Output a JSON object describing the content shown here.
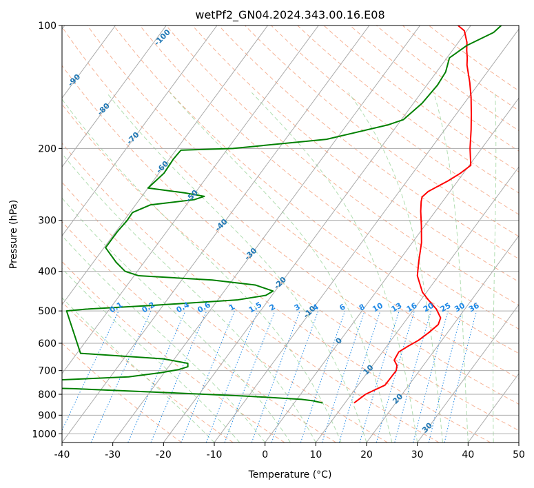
{
  "chart_data": {
    "type": "line",
    "title": "wetPf2_GN04.2024.343.00.16.E08",
    "xlabel": "Temperature (°C)",
    "ylabel": "Pressure (hPa)",
    "xlim": [
      -40,
      50
    ],
    "ylim": [
      1050,
      100
    ],
    "y_scale": "log",
    "skew": "skew-T",
    "grid": true,
    "x_ticks": [
      -40,
      -30,
      -20,
      -10,
      0,
      10,
      20,
      30,
      40,
      50
    ],
    "y_ticks": [
      100,
      200,
      300,
      400,
      500,
      600,
      700,
      800,
      900,
      1000
    ],
    "isotherm_labels": [
      "-100",
      "-90",
      "-80",
      "-70",
      "-60",
      "-50",
      "-40",
      "-30",
      "-20",
      "-10",
      "0",
      "10",
      "20",
      "30",
      "40"
    ],
    "isotherm_values": [
      -100,
      -90,
      -80,
      -70,
      -60,
      -50,
      -40,
      -30,
      -20,
      -10,
      0,
      10,
      20,
      30,
      40
    ],
    "mixing_ratio_labels": [
      "0.1",
      "0.2",
      "0.4",
      "0.6",
      "1",
      "1.5",
      "2",
      "3",
      "4",
      "6",
      "8",
      "10",
      "13",
      "16",
      "20",
      "25",
      "30",
      "36"
    ],
    "mixing_ratio_values": [
      0.1,
      0.2,
      0.4,
      0.6,
      1,
      1.5,
      2,
      3,
      4,
      6,
      8,
      10,
      13,
      16,
      20,
      25,
      30,
      36
    ],
    "series": [
      {
        "color": "#ff0000",
        "points": [
          [
            11.8,
            840
          ],
          [
            12.8,
            800
          ],
          [
            15.3,
            760
          ],
          [
            15.4,
            700
          ],
          [
            14.8,
            680
          ],
          [
            13.5,
            660
          ],
          [
            13.2,
            630
          ],
          [
            14.2,
            610
          ],
          [
            15.4,
            590
          ],
          [
            16.3,
            565
          ],
          [
            17.0,
            540
          ],
          [
            16.5,
            520
          ],
          [
            14.4,
            495
          ],
          [
            11.5,
            470
          ],
          [
            9.2,
            450
          ],
          [
            5.8,
            410
          ],
          [
            4.1,
            380
          ],
          [
            1.8,
            340
          ],
          [
            -0.6,
            310
          ],
          [
            -2.9,
            285
          ],
          [
            -4.2,
            270
          ],
          [
            -4.7,
            263
          ],
          [
            -4.3,
            255
          ],
          [
            -1.9,
            240
          ],
          [
            -0.6,
            230
          ],
          [
            0.3,
            220
          ],
          [
            -2.3,
            200
          ],
          [
            -4.8,
            180
          ],
          [
            -7.0,
            165
          ],
          [
            -9.5,
            150
          ],
          [
            -11.9,
            138
          ],
          [
            -15.0,
            125
          ],
          [
            -16.0,
            120
          ],
          [
            -17.2,
            115
          ],
          [
            -18.3,
            110
          ],
          [
            -20.5,
            103
          ],
          [
            -22.5,
            100
          ]
        ]
      },
      {
        "color": "#008000",
        "points": [
          [
            5.6,
            840
          ],
          [
            3.4,
            830
          ],
          [
            0.9,
            823
          ],
          [
            -10.6,
            808
          ],
          [
            -27.0,
            792
          ],
          [
            -45.6,
            775
          ],
          [
            -56.1,
            770
          ],
          [
            -55.6,
            755
          ],
          [
            -54.9,
            747
          ],
          [
            -55.8,
            741
          ],
          [
            -48.6,
            737
          ],
          [
            -36.4,
            725
          ],
          [
            -30.6,
            708
          ],
          [
            -27.6,
            696
          ],
          [
            -26.2,
            685
          ],
          [
            -26.7,
            672
          ],
          [
            -32.2,
            655
          ],
          [
            -49.3,
            635
          ],
          [
            -58.2,
            500
          ],
          [
            -54.6,
            495
          ],
          [
            -42.5,
            485
          ],
          [
            -26.2,
            470
          ],
          [
            -21.2,
            458
          ],
          [
            -20.4,
            447
          ],
          [
            -24.8,
            432
          ],
          [
            -34.0,
            420
          ],
          [
            -49.1,
            410
          ],
          [
            -52.4,
            400
          ],
          [
            -55.5,
            380
          ],
          [
            -59.7,
            350
          ],
          [
            -59.7,
            320
          ],
          [
            -59.4,
            300
          ],
          [
            -59.5,
            287
          ],
          [
            -57.1,
            275
          ],
          [
            -49.2,
            267
          ],
          [
            -47.7,
            262
          ],
          [
            -52.0,
            257
          ],
          [
            -60.0,
            250
          ],
          [
            -59.0,
            230
          ],
          [
            -59.2,
            212
          ],
          [
            -59.0,
            202
          ],
          [
            -49.0,
            200
          ],
          [
            -31.9,
            190
          ],
          [
            -21.8,
            175
          ],
          [
            -19.6,
            170
          ],
          [
            -18.3,
            155
          ],
          [
            -17.9,
            140
          ],
          [
            -18.2,
            130
          ],
          [
            -19.5,
            120
          ],
          [
            -17.9,
            112
          ],
          [
            -14.5,
            104
          ],
          [
            -14.0,
            100
          ]
        ]
      }
    ]
  }
}
